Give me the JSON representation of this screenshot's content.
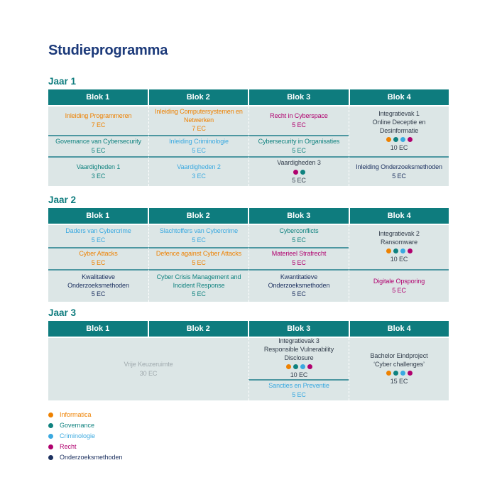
{
  "title": "Studieprogramma",
  "colors": {
    "title_navy": "#1c3a7a",
    "teal_header": "#0e7c7e",
    "cell_bg": "#dce6e6",
    "row_divider": "#4d97a1"
  },
  "category_colors": {
    "informatica": "#ee8100",
    "governance": "#0f827f",
    "criminologie": "#3aa9e0",
    "recht": "#b0006e",
    "onderzoeksmethoden": "#1d3160",
    "neutral": "#333e4c",
    "gray": "#9fa9ad"
  },
  "years": [
    {
      "label": "Jaar 1",
      "headers": [
        "Blok 1",
        "Blok 2",
        "Blok 3",
        "Blok 4"
      ],
      "cells": {
        "b1r1": {
          "title": "Inleiding Programmeren",
          "ec": "7 EC",
          "category": "informatica"
        },
        "b2r1": {
          "title": "Inleiding Computersystemen en Netwerken",
          "ec": "7 EC",
          "category": "informatica"
        },
        "b3r1": {
          "title": "Recht in Cyberspace",
          "ec": "5 EC",
          "category": "recht"
        },
        "b4r12": {
          "title": "Integratievak 1",
          "subtitle": "Online Deceptie en Desinformatie",
          "ec": "10 EC",
          "category": "neutral",
          "dots": [
            "informatica",
            "governance",
            "criminologie",
            "recht"
          ]
        },
        "b1r2": {
          "title": "Governance van Cybersecurity",
          "ec": "5 EC",
          "category": "governance"
        },
        "b2r2": {
          "title": "Inleiding Criminologie",
          "ec": "5 EC",
          "category": "criminologie"
        },
        "b3r2": {
          "title": "Cybersecurity in Organisaties",
          "ec": "5 EC",
          "category": "governance"
        },
        "b1r3": {
          "title": "Vaardigheden 1",
          "ec": "3 EC",
          "category": "governance"
        },
        "b2r3": {
          "title": "Vaardigheden 2",
          "ec": "3 EC",
          "category": "criminologie"
        },
        "b3r3": {
          "title": "Vaardigheden 3",
          "ec": "5 EC",
          "category": "neutral",
          "dots": [
            "recht",
            "governance"
          ]
        },
        "b4r3": {
          "title": "Inleiding Onderzoeksmethoden",
          "ec": "5 EC",
          "category": "onderzoeksmethoden"
        }
      }
    },
    {
      "label": "Jaar 2",
      "headers": [
        "Blok 1",
        "Blok 2",
        "Blok 3",
        "Blok 4"
      ],
      "cells": {
        "b1r1": {
          "title": "Daders van Cybercrime",
          "ec": "5 EC",
          "category": "criminologie"
        },
        "b2r1": {
          "title": "Slachtoffers van Cybercrime",
          "ec": "5 EC",
          "category": "criminologie"
        },
        "b3r1": {
          "title": "Cyberconflicts",
          "ec": "5 EC",
          "category": "governance"
        },
        "b4r12": {
          "title": "Integratievak 2",
          "subtitle": "Ransomware",
          "ec": "10 EC",
          "category": "neutral",
          "dots": [
            "informatica",
            "governance",
            "criminologie",
            "recht"
          ]
        },
        "b1r2": {
          "title": "Cyber Attacks",
          "ec": "5 EC",
          "category": "informatica"
        },
        "b2r2": {
          "title": "Defence against Cyber Attacks",
          "ec": "5 EC",
          "category": "informatica"
        },
        "b3r2": {
          "title": "Materieel Strafrecht",
          "ec": "5 EC",
          "category": "recht"
        },
        "b1r3": {
          "title": "Kwalitatieve Onderzoeksmethoden",
          "ec": "5 EC",
          "category": "onderzoeksmethoden"
        },
        "b2r3": {
          "title": "Cyber Crisis Management and Incident Response",
          "ec": "5 EC",
          "category": "governance"
        },
        "b3r3": {
          "title": "Kwantitatieve Onderzoeksmethoden",
          "ec": "5 EC",
          "category": "onderzoeksmethoden"
        },
        "b4r3": {
          "title": "Digitale Opsporing",
          "ec": "5 EC",
          "category": "recht"
        }
      }
    },
    {
      "label": "Jaar 3",
      "headers": [
        "Blok 1",
        "Blok 2",
        "Blok 3",
        "Blok 4"
      ],
      "cells": {
        "b12": {
          "title": "Vrije Keuzeruimte",
          "ec": "30 EC",
          "category": "gray"
        },
        "b3r1": {
          "title": "Integratievak 3",
          "subtitle": "Responsible Vulnerability Disclosure",
          "ec": "10 EC",
          "category": "neutral",
          "dots": [
            "informatica",
            "governance",
            "criminologie",
            "recht"
          ]
        },
        "b3r2": {
          "title": "Sancties en Preventie",
          "ec": "5 EC",
          "category": "criminologie"
        },
        "b4": {
          "title": "Bachelor Eindproject",
          "subtitle": "‘Cyber challenges’",
          "ec": "15 EC",
          "category": "neutral",
          "dots": [
            "informatica",
            "governance",
            "criminologie",
            "recht"
          ]
        }
      }
    }
  ],
  "legend": {
    "items": [
      {
        "label": "Informatica",
        "key": "informatica",
        "dots": [
          "informatica"
        ]
      },
      {
        "label": "Governance",
        "key": "governance",
        "dots": [
          "governance"
        ]
      },
      {
        "label": "Criminologie",
        "key": "criminologie",
        "dots": [
          "criminologie"
        ]
      },
      {
        "label": "Recht",
        "key": "recht",
        "dots": [
          "recht"
        ]
      },
      {
        "label": "Onderzoeksmethoden",
        "key": "onderzoeksmethoden",
        "dots": [
          "onderzoeksmethoden"
        ]
      }
    ]
  }
}
